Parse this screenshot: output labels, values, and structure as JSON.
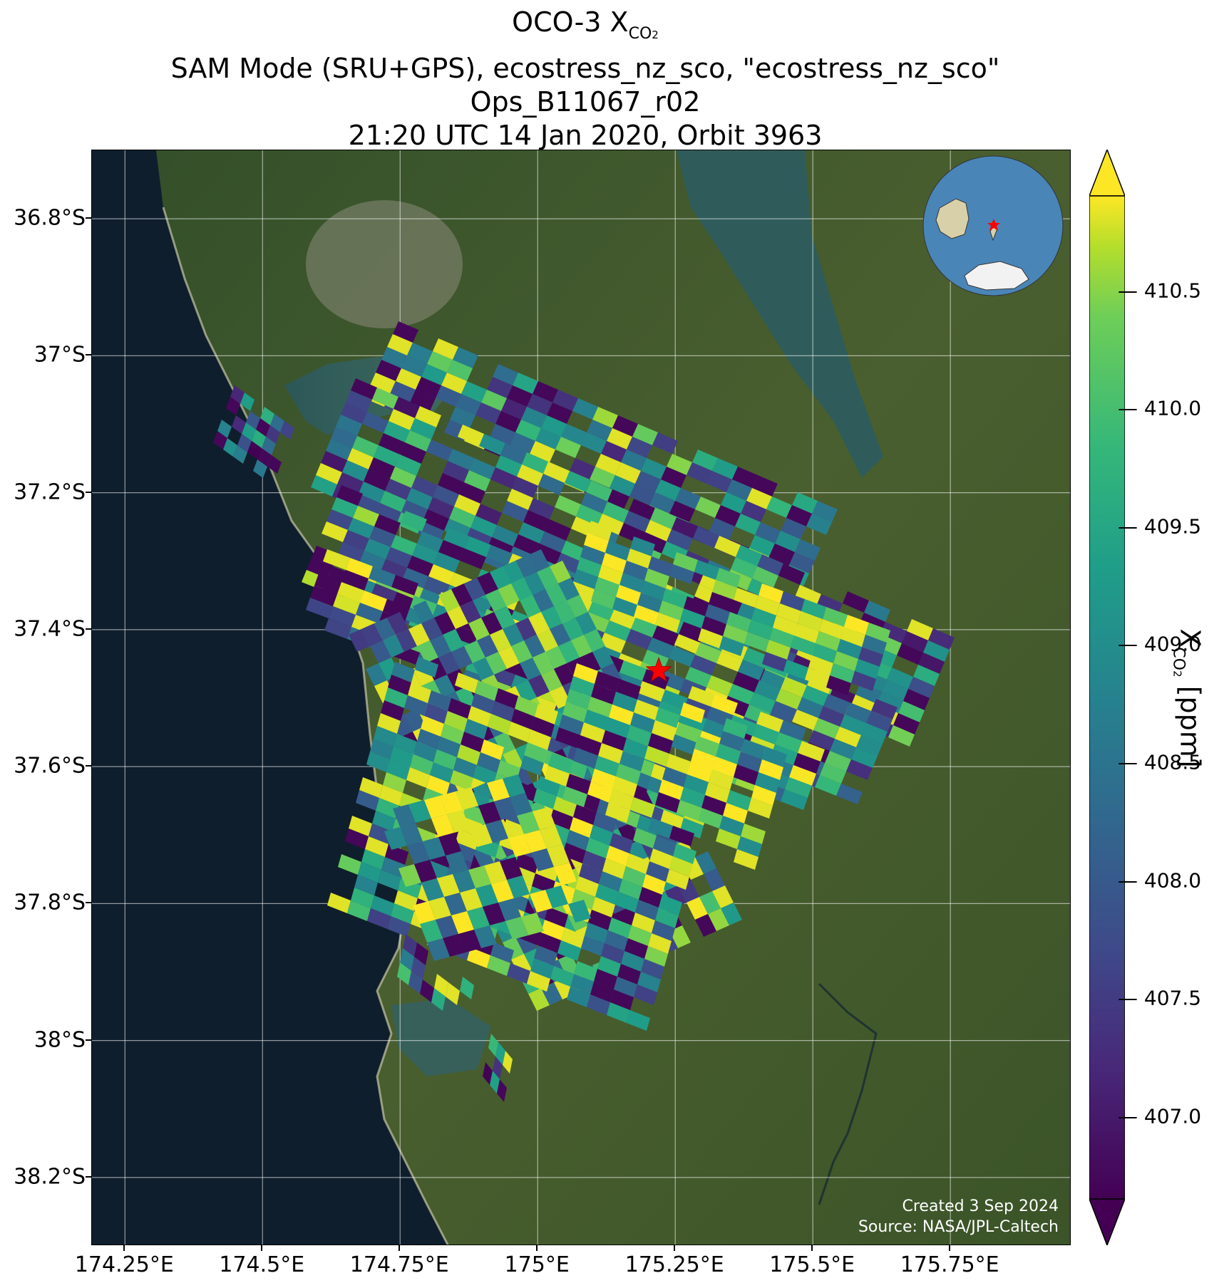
{
  "title": {
    "line1_prefix": "OCO-3 X",
    "line1_sub": "CO",
    "line1_sub2": "2",
    "line2": "SAM Mode (SRU+GPS), ecostress_nz_sco, \"ecostress_nz_sco\"",
    "line3": "Ops_B11067_r02",
    "line4": "21:20 UTC 14 Jan 2020, Orbit 3963"
  },
  "map": {
    "lon_range": [
      174.19,
      175.97
    ],
    "lat_range": [
      -38.3,
      -36.7
    ],
    "x_ticks": [
      "174.25°E",
      "174.5°E",
      "174.75°E",
      "175°E",
      "175.25°E",
      "175.5°E",
      "175.75°E"
    ],
    "x_tick_values": [
      174.25,
      174.5,
      174.75,
      175.0,
      175.25,
      175.5,
      175.75
    ],
    "y_ticks": [
      "36.8°S",
      "37°S",
      "37.2°S",
      "37.4°S",
      "37.6°S",
      "37.8°S",
      "38°S",
      "38.2°S"
    ],
    "y_tick_values": [
      -36.8,
      -37.0,
      -37.2,
      -37.4,
      -37.6,
      -37.8,
      -38.0,
      -38.2
    ],
    "target": {
      "lon": 175.22,
      "lat": -37.46,
      "marker": "red-star"
    },
    "grid": true,
    "basemap": "satellite imagery",
    "inset": "globe locator, top-right"
  },
  "colorbar": {
    "label_prefix": "X",
    "label_sub": "CO",
    "label_sub2": "2",
    "label_suffix": " [ppm]",
    "min": 406.65,
    "max": 410.9,
    "ticks": [
      "407.0",
      "407.5",
      "408.0",
      "408.5",
      "409.0",
      "409.5",
      "410.0",
      "410.5"
    ],
    "tick_values": [
      407.0,
      407.5,
      408.0,
      408.5,
      409.0,
      409.5,
      410.0,
      410.5
    ],
    "colormap": "viridis",
    "extend": "both"
  },
  "credit": {
    "line1": "Created 3 Sep 2024",
    "line2": "Source: NASA/JPL-Caltech"
  },
  "colors": {
    "sea": "#0f1e2c",
    "land": "#3f5a2c",
    "target_star": "#ff0000"
  }
}
